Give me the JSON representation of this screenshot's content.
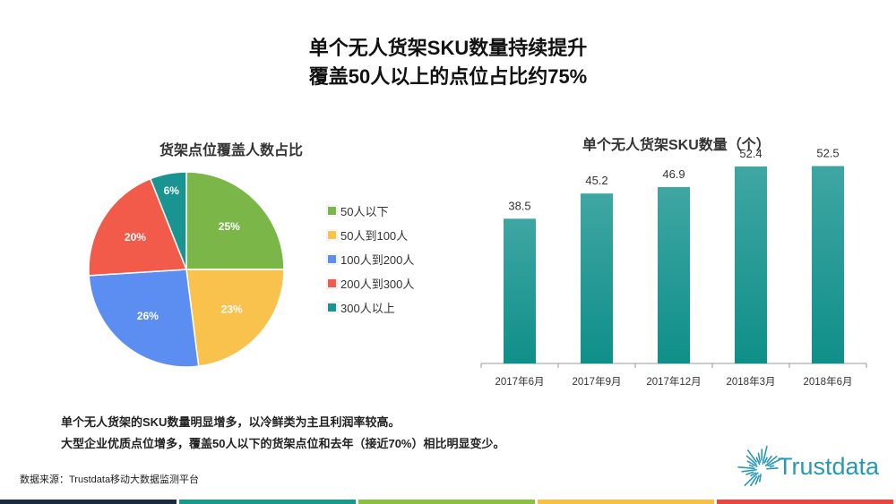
{
  "title_line1": "单个无人货架SKU数量持续提升",
  "title_line2": "覆盖50人以上的点位占比约75%",
  "notes": [
    "单个无人货架的SKU数量明显增多，以冷鲜类为主且利润率较高。",
    "大型企业优质点位增多，覆盖50人以下的货架点位和去年（接近70%）相比明显变少。"
  ],
  "source": "数据来源：Trustdata移动大数据监测平台",
  "logo_text": "Trustdata",
  "bottom_bar_colors": [
    "#1b2a3f",
    "#17998b",
    "#8cbf3f",
    "#f5c044",
    "#e8473f"
  ],
  "chart_data": [
    {
      "type": "pie",
      "title": "货架点位覆盖人数占比",
      "legend_position": "right",
      "slices": [
        {
          "label": "50人以下",
          "value": 25,
          "value_label": "25%",
          "color": "#7ab648"
        },
        {
          "label": "50人到100人",
          "value": 23,
          "value_label": "23%",
          "color": "#f8c24c"
        },
        {
          "label": "100人到200人",
          "value": 26,
          "value_label": "26%",
          "color": "#5b8ef0"
        },
        {
          "label": "200人到300人",
          "value": 20,
          "value_label": "20%",
          "color": "#f25a4a"
        },
        {
          "label": "300人以上",
          "value": 6,
          "value_label": "6%",
          "color": "#1a9490"
        }
      ]
    },
    {
      "type": "bar",
      "title": "单个无人货架SKU数量（个）",
      "categories": [
        "2017年6月",
        "2017年9月",
        "2017年12月",
        "2018年3月",
        "2018年6月"
      ],
      "values": [
        38.5,
        45.2,
        46.9,
        52.4,
        52.5
      ],
      "value_labels": [
        "38.5",
        "45.2",
        "46.9",
        "52.4",
        "52.5"
      ],
      "ylim": [
        0,
        60
      ],
      "color_top": "#3fa6a3",
      "color_bottom": "#0f8f89",
      "grid": false
    }
  ]
}
